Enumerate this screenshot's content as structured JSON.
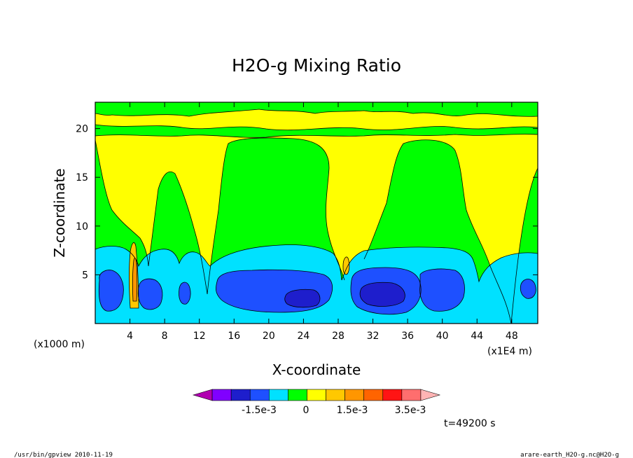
{
  "chart_data": {
    "type": "heatmap",
    "title": "H2O-g Mixing Ratio",
    "xlabel": "X-coordinate",
    "ylabel": "Z-coordinate",
    "x_unit_left": "(x1000 m)",
    "x_unit_right": "(x1E4 m)",
    "x_tick_labels": [
      "4",
      "8",
      "12",
      "16",
      "20",
      "24",
      "28",
      "32",
      "36",
      "40",
      "44",
      "48"
    ],
    "y_tick_labels": [
      "5",
      "10",
      "15",
      "20"
    ],
    "xlim": [
      0,
      51
    ],
    "ylim": [
      0,
      22.7
    ],
    "colorbar": {
      "colors": [
        "#b000b0",
        "#8000ff",
        "#1e1ecc",
        "#1e50ff",
        "#00e1ff",
        "#00ff00",
        "#ffff00",
        "#ffc800",
        "#ff9600",
        "#ff6400",
        "#ff1414",
        "#ff6e6e",
        "#ffb4b4"
      ],
      "tick_labels": [
        "-1.5e-3",
        "0",
        "1.5e-3",
        "3.5e-3"
      ]
    },
    "time_label": "t=49200 s",
    "footer_left": "/usr/bin/gpview  2010-11-19",
    "footer_right": "arare-earth_H2O-g.nc@H2O-g",
    "regions": [
      {
        "level": "yellow",
        "shape": "upper yellow layer between the low-level blue cells and the green cap, x 0-51, z ~8-21"
      },
      {
        "level": "green",
        "shape": "top cap z ~21-22.7, two broad green columns centred x~20 and x~38 reaching z~20"
      },
      {
        "level": "cyan",
        "shape": "low-level band z 0-8"
      },
      {
        "level": "blue",
        "shape": "cells at x~2, 7, 10, 20, 32, 39, 50 with z 1-5"
      },
      {
        "level": "darkblue",
        "shape": "cores at x~24 and x~32, z~3"
      },
      {
        "level": "orange",
        "shape": "narrow plume at x~4.5, z up to ~8"
      }
    ]
  }
}
